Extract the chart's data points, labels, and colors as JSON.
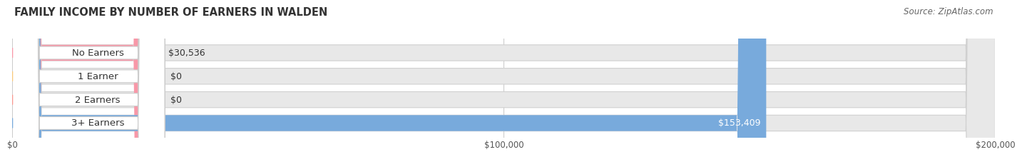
{
  "title": "FAMILY INCOME BY NUMBER OF EARNERS IN WALDEN",
  "source": "Source: ZipAtlas.com",
  "categories": [
    "No Earners",
    "1 Earner",
    "2 Earners",
    "3+ Earners"
  ],
  "values": [
    30536,
    0,
    0,
    153409
  ],
  "bar_colors": [
    "#f898a8",
    "#f8c87a",
    "#f89890",
    "#78aadc"
  ],
  "value_label_colors": [
    "#333333",
    "#333333",
    "#333333",
    "#ffffff"
  ],
  "xmax": 200000,
  "xticks": [
    0,
    100000,
    200000
  ],
  "xtick_labels": [
    "$0",
    "$100,000",
    "$200,000"
  ],
  "value_labels": [
    "$30,536",
    "$0",
    "$0",
    "$153,409"
  ],
  "title_fontsize": 10.5,
  "source_fontsize": 8.5,
  "cat_fontsize": 9.5,
  "value_fontsize": 9,
  "background_color": "#ffffff",
  "bar_bg_color": "#e8e8e8",
  "bar_border_color": "#d0d0d0"
}
